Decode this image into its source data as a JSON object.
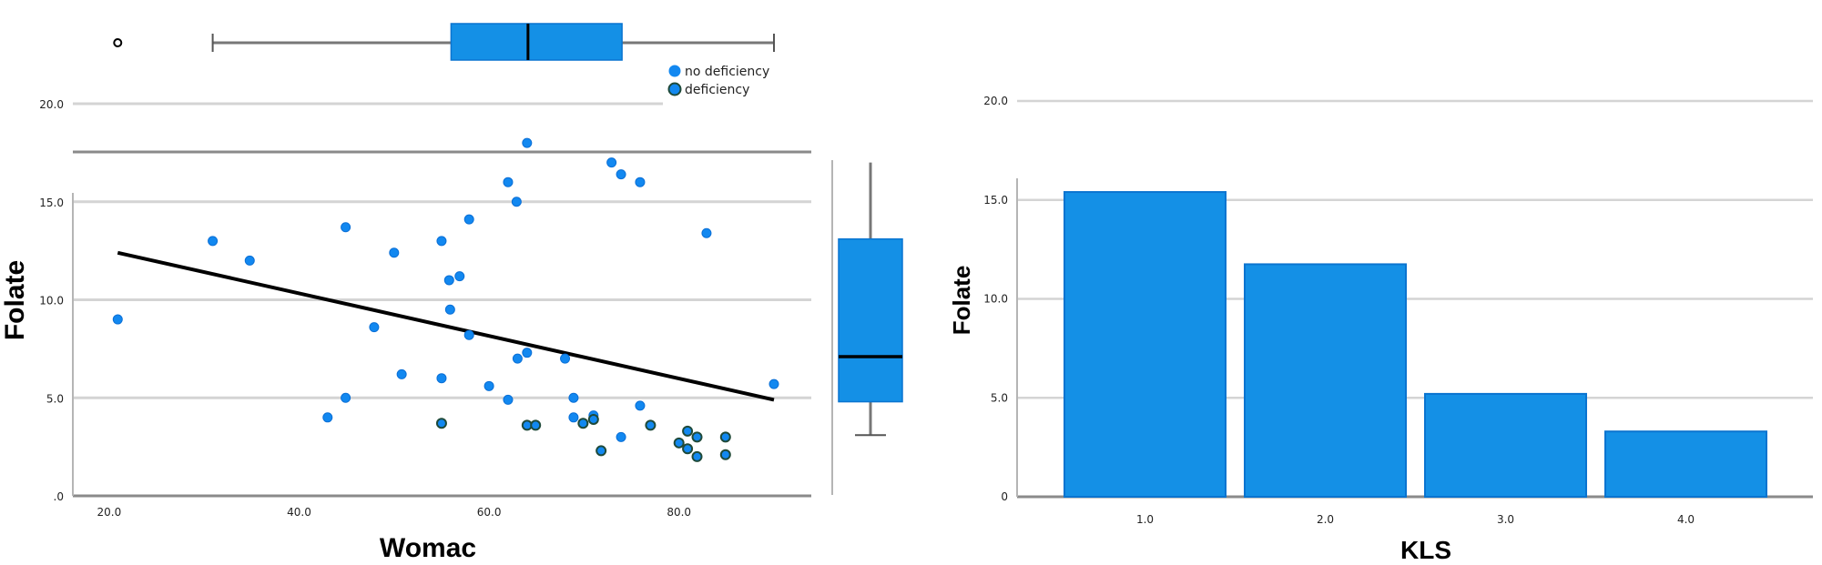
{
  "colors": {
    "bar_fill": "#1490e6",
    "bar_edge": "#0a74d0",
    "point_fill": "#1288f0",
    "deficiency_edge": "#1f4a3a",
    "gridline": "#d4d4d4",
    "axis": "#8a8a8a",
    "regression_line": "#000000"
  },
  "chart_data": [
    {
      "type": "scatter",
      "title": "",
      "xlabel": "Womac",
      "ylabel": "Folate",
      "xlim": [
        17,
        95
      ],
      "ylim": [
        0,
        22
      ],
      "x_ticks": [
        "20.0",
        "40.0",
        "60.0",
        "80.0"
      ],
      "y_ticks": [
        ".0",
        "5.0",
        "10.0",
        "15.0",
        "20.0"
      ],
      "grid": "horizontal",
      "legend": {
        "position": "top-right",
        "entries": [
          "no deficiency",
          "deficiency"
        ]
      },
      "series": [
        {
          "name": "no deficiency",
          "points": [
            [
              20.9,
              9.0
            ],
            [
              30.9,
              13.0
            ],
            [
              34.8,
              12.0
            ],
            [
              44.9,
              13.7
            ],
            [
              43.0,
              4.0
            ],
            [
              44.9,
              5.0
            ],
            [
              47.9,
              8.6
            ],
            [
              50.0,
              12.4
            ],
            [
              50.8,
              6.2
            ],
            [
              55.0,
              13.0
            ],
            [
              55.0,
              6.0
            ],
            [
              55.8,
              11.0
            ],
            [
              56.9,
              11.2
            ],
            [
              55.9,
              9.5
            ],
            [
              57.9,
              14.1
            ],
            [
              57.9,
              8.2
            ],
            [
              60.0,
              5.6
            ],
            [
              62.0,
              16.0
            ],
            [
              62.0,
              4.9
            ],
            [
              62.9,
              15.0
            ],
            [
              63.0,
              7.0
            ],
            [
              64.0,
              18.0
            ],
            [
              64.0,
              7.3
            ],
            [
              68.0,
              7.0
            ],
            [
              68.9,
              5.0
            ],
            [
              68.9,
              4.0
            ],
            [
              71.0,
              4.1
            ],
            [
              72.9,
              17.0
            ],
            [
              73.9,
              16.4
            ],
            [
              73.9,
              3.0
            ],
            [
              75.9,
              16.0
            ],
            [
              75.9,
              4.6
            ],
            [
              82.9,
              13.4
            ],
            [
              90.0,
              5.7
            ]
          ]
        },
        {
          "name": "deficiency",
          "points": [
            [
              55.0,
              3.7
            ],
            [
              64.0,
              3.6
            ],
            [
              64.9,
              3.6
            ],
            [
              69.9,
              3.7
            ],
            [
              71.0,
              3.9
            ],
            [
              71.8,
              2.3
            ],
            [
              77.0,
              3.6
            ],
            [
              80.0,
              2.7
            ],
            [
              80.9,
              3.3
            ],
            [
              80.9,
              2.4
            ],
            [
              81.9,
              3.0
            ],
            [
              81.9,
              2.0
            ],
            [
              84.9,
              3.0
            ],
            [
              84.9,
              2.1
            ]
          ]
        }
      ],
      "regression_line": {
        "x": [
          20.9,
          90.0
        ],
        "y": [
          12.4,
          4.9
        ]
      },
      "marginal_boxplots": {
        "x_womac": {
          "whisker_low": 30.9,
          "q1": 56.0,
          "median": 64.1,
          "q3": 74.0,
          "whisker_high": 90.0,
          "outliers": [
            20.9
          ]
        },
        "y_folate": {
          "whisker_low": 3.1,
          "q1": 4.8,
          "median": 7.1,
          "q3": 13.1,
          "whisker_high": 17.0,
          "outliers": []
        }
      }
    },
    {
      "type": "bar",
      "title": "",
      "xlabel": "KLS",
      "ylabel": "Folate",
      "categories": [
        "1.0",
        "2.0",
        "3.0",
        "4.0"
      ],
      "values": [
        15.4,
        11.75,
        5.2,
        3.3
      ],
      "ylim": [
        0,
        22
      ],
      "y_ticks": [
        "0",
        "5.0",
        "10.0",
        "15.0",
        "20.0"
      ],
      "grid": "horizontal"
    }
  ],
  "labels": {
    "scatter_xlabel": "Womac",
    "scatter_ylabel": "Folate",
    "bar_xlabel": "KLS",
    "bar_ylabel": "Folate",
    "legend_no_def": "no deficiency",
    "legend_def": "deficiency"
  }
}
